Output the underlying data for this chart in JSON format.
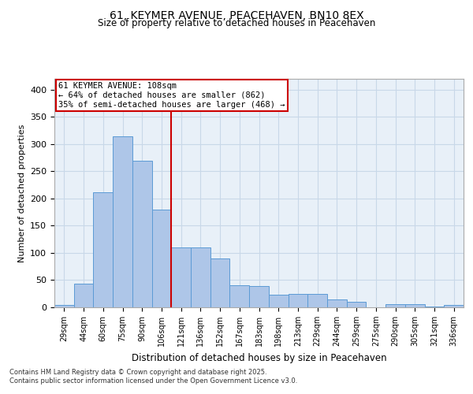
{
  "title_line1": "61, KEYMER AVENUE, PEACEHAVEN, BN10 8EX",
  "title_line2": "Size of property relative to detached houses in Peacehaven",
  "xlabel": "Distribution of detached houses by size in Peacehaven",
  "ylabel": "Number of detached properties",
  "categories": [
    "29sqm",
    "44sqm",
    "60sqm",
    "75sqm",
    "90sqm",
    "106sqm",
    "121sqm",
    "136sqm",
    "152sqm",
    "167sqm",
    "183sqm",
    "198sqm",
    "213sqm",
    "229sqm",
    "244sqm",
    "259sqm",
    "275sqm",
    "290sqm",
    "305sqm",
    "321sqm",
    "336sqm"
  ],
  "values": [
    5,
    43,
    212,
    315,
    270,
    180,
    110,
    110,
    90,
    40,
    39,
    23,
    25,
    25,
    14,
    10,
    0,
    6,
    6,
    1,
    4
  ],
  "bar_color": "#aec6e8",
  "bar_edge_color": "#5b9bd5",
  "vline_x": 5.5,
  "vline_color": "#cc0000",
  "annotation_text": "61 KEYMER AVENUE: 108sqm\n← 64% of detached houses are smaller (862)\n35% of semi-detached houses are larger (468) →",
  "annotation_box_color": "#ffffff",
  "annotation_box_edge": "#cc0000",
  "grid_color": "#c8d8e8",
  "background_color": "#e8f0f8",
  "footer_text": "Contains HM Land Registry data © Crown copyright and database right 2025.\nContains public sector information licensed under the Open Government Licence v3.0.",
  "ylim": [
    0,
    420
  ],
  "yticks": [
    0,
    50,
    100,
    150,
    200,
    250,
    300,
    350,
    400
  ]
}
